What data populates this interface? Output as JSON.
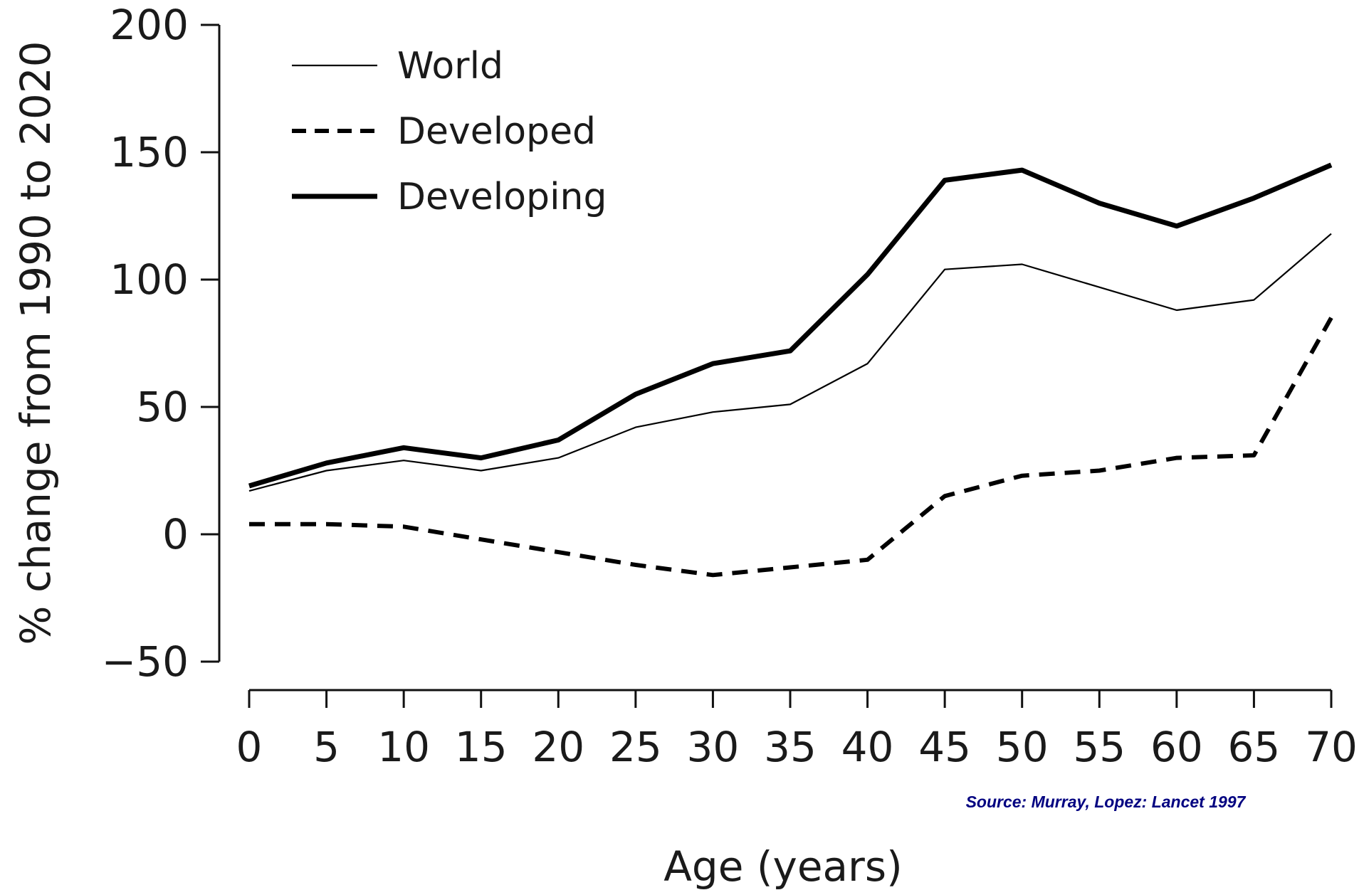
{
  "chart_data": {
    "type": "line",
    "xlabel": "Age (years)",
    "ylabel": "% change from 1990 to 2020",
    "x": [
      0,
      5,
      10,
      15,
      20,
      25,
      30,
      35,
      40,
      45,
      50,
      55,
      60,
      65,
      70
    ],
    "x_ticks": [
      "0",
      "5",
      "10",
      "15",
      "20",
      "25",
      "30",
      "35",
      "40",
      "45",
      "50",
      "55",
      "60",
      "65",
      "70"
    ],
    "y_ticks": [
      "200",
      "150",
      "100",
      "50",
      "0",
      "−50"
    ],
    "xlim": [
      0,
      70
    ],
    "ylim": [
      -50,
      200
    ],
    "grid": false,
    "legend_position": "top-left",
    "series": [
      {
        "name": "World",
        "style": "thin-solid",
        "color": "#000000",
        "values": [
          17,
          25,
          29,
          25,
          30,
          42,
          48,
          51,
          67,
          104,
          106,
          97,
          88,
          92,
          118
        ]
      },
      {
        "name": "Developed",
        "style": "dashed",
        "color": "#000000",
        "values": [
          4,
          4,
          3,
          -2,
          -7,
          -12,
          -16,
          -13,
          -10,
          15,
          23,
          25,
          30,
          31,
          85
        ]
      },
      {
        "name": "Developing",
        "style": "thick-solid",
        "color": "#000000",
        "values": [
          19,
          28,
          34,
          30,
          37,
          55,
          67,
          72,
          102,
          139,
          143,
          130,
          121,
          132,
          145
        ]
      }
    ],
    "source_note": "Source: Murray, Lopez: Lancet 1997",
    "source_note_color": "#000080"
  }
}
